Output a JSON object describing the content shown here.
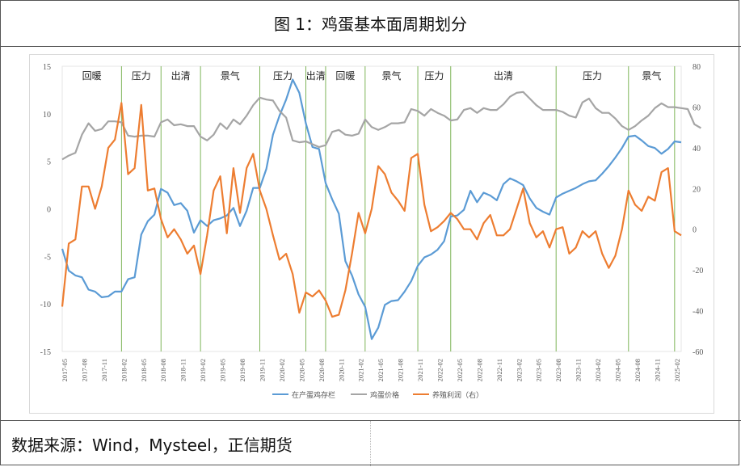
{
  "header": {
    "title": "图 1：鸡蛋基本面周期划分"
  },
  "footer": {
    "source": "数据来源：Wind，Mysteel，正信期货"
  },
  "colors": {
    "inventory": "#5B9BD5",
    "price": "#A5A5A5",
    "profit": "#ED7D31",
    "divider": "#70AD47"
  },
  "chart_data": {
    "type": "line",
    "title": "",
    "x_ticks": [
      "2017-05",
      "2017-08",
      "2017-11",
      "2018-02",
      "2018-05",
      "2018-08",
      "2018-11",
      "2019-02",
      "2019-05",
      "2019-08",
      "2019-11",
      "2020-02",
      "2020-05",
      "2020-08",
      "2020-11",
      "2021-02",
      "2021-05",
      "2021-08",
      "2021-11",
      "2022-02",
      "2022-05",
      "2022-08",
      "2022-11",
      "2023-02",
      "2023-05",
      "2023-08",
      "2023-11",
      "2024-02",
      "2024-05",
      "2024-08",
      "2024-11",
      "2025-02"
    ],
    "y_left": {
      "range": [
        -15,
        15
      ],
      "ticks": [
        "15",
        "10",
        "5",
        "0",
        "-5",
        "-10",
        "-15"
      ]
    },
    "y_right": {
      "range": [
        -60,
        80
      ],
      "ticks": [
        "80",
        "60",
        "40",
        "20",
        "0",
        "-20",
        "-40",
        "-60"
      ]
    },
    "phases": [
      "回暖",
      "压力",
      "出清",
      "景气",
      "压力",
      "出清",
      "回暖",
      "景气",
      "压力",
      "出清",
      "压力",
      "景气"
    ],
    "phase_boundaries": [
      "2018-02",
      "2018-08",
      "2019-02",
      "2019-11",
      "2020-06",
      "2020-09",
      "2021-03",
      "2021-11",
      "2022-04",
      "2023-08",
      "2024-07",
      "2025-02"
    ],
    "legend_position": "bottom",
    "series": [
      {
        "name": "在产蛋鸡存栏",
        "axis": "left",
        "values": [
          -4.2,
          -6.5,
          -7.0,
          -7.2,
          -8.5,
          -8.7,
          -9.3,
          -9.2,
          -8.7,
          -8.7,
          -7.4,
          -7.2,
          -2.7,
          -1.3,
          -0.6,
          2.1,
          1.7,
          0.4,
          0.6,
          -0.2,
          -2.5,
          -1.2,
          -1.8,
          -1.2,
          -1.0,
          -0.7,
          0.1,
          -1.8,
          -0.2,
          2.2,
          2.2,
          4.2,
          7.8,
          9.8,
          11.5,
          13.6,
          12.2,
          9.0,
          6.5,
          6.3,
          2.7,
          1.0,
          -0.5,
          -5.5,
          -7.0,
          -9.0,
          -10.3,
          -13.7,
          -12.5,
          -10.1,
          -9.7,
          -9.6,
          -8.7,
          -7.6,
          -6.0,
          -5.1,
          -4.8,
          -4.3,
          -3.4,
          -0.8,
          -0.7,
          -0.1,
          1.9,
          0.7,
          1.7,
          1.4,
          0.9,
          2.6,
          3.2,
          2.9,
          2.5,
          1.1,
          0.1,
          -0.3,
          -0.6,
          1.2,
          1.6,
          1.9,
          2.2,
          2.6,
          2.9,
          3.0,
          3.7,
          4.5,
          5.4,
          6.4,
          7.6,
          7.7,
          7.2,
          6.6,
          6.4,
          5.8,
          6.3,
          7.1,
          7.0
        ]
      },
      {
        "name": "鸡蛋价格",
        "axis": "left",
        "values": [
          5.2,
          5.6,
          5.9,
          7.8,
          9.0,
          8.2,
          8.4,
          9.2,
          9.2,
          9.1,
          7.7,
          7.6,
          7.7,
          7.7,
          7.6,
          9.1,
          9.4,
          8.8,
          8.9,
          8.7,
          8.7,
          7.6,
          7.2,
          7.8,
          9.0,
          8.4,
          9.4,
          8.9,
          9.8,
          10.9,
          11.7,
          11.5,
          11.4,
          10.3,
          9.6,
          7.2,
          7.0,
          7.1,
          6.8,
          6.5,
          6.7,
          8.1,
          8.3,
          7.8,
          7.7,
          7.9,
          9.4,
          8.6,
          8.3,
          8.6,
          9.0,
          9.0,
          9.1,
          10.5,
          10.3,
          9.8,
          10.5,
          10.1,
          9.8,
          9.3,
          9.4,
          10.4,
          10.6,
          10.1,
          10.6,
          10.4,
          10.4,
          11.0,
          11.8,
          12.2,
          12.3,
          11.6,
          10.9,
          10.4,
          10.4,
          10.4,
          10.2,
          9.8,
          9.6,
          11.2,
          11.6,
          10.6,
          10.1,
          10.1,
          9.5,
          8.7,
          8.3,
          8.7,
          9.3,
          9.8,
          10.6,
          11.1,
          10.7,
          10.7,
          10.6,
          10.5,
          8.9,
          8.5
        ]
      },
      {
        "name": "养殖利润（右）",
        "axis": "right",
        "values": [
          -38,
          -7,
          -5,
          21,
          21,
          10,
          21,
          40,
          44,
          62,
          27,
          30,
          61,
          19,
          20,
          5,
          -4,
          0,
          -5,
          -12,
          -8,
          -22,
          -3,
          19,
          26,
          -2,
          30,
          8,
          30,
          37,
          19,
          10,
          -3,
          -15,
          -12,
          -22,
          -41,
          -31,
          -33,
          -30,
          -35,
          -43,
          -42,
          -30,
          -12,
          8,
          -2,
          10,
          31,
          27,
          18,
          14,
          9,
          35,
          37,
          12,
          -1,
          1,
          4,
          8,
          5,
          0,
          0,
          -5,
          3,
          7,
          -3,
          -3,
          0,
          10,
          20,
          3,
          -4,
          -1,
          -9,
          0,
          1,
          -12,
          -9,
          -1,
          -4,
          -1,
          -12,
          -19,
          -13,
          0,
          19,
          12,
          9,
          16,
          14,
          28,
          30,
          -1,
          -3
        ]
      }
    ]
  }
}
